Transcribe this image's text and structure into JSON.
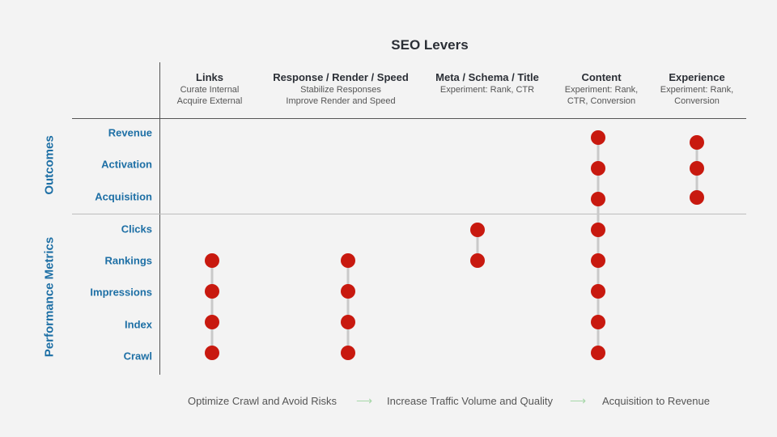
{
  "title": "SEO Levers",
  "columns": [
    {
      "heading": "Links",
      "sub1": "Curate Internal",
      "sub2": "Acquire External"
    },
    {
      "heading": "Response / Render / Speed",
      "sub1": "Stabilize Responses",
      "sub2": "Improve Render and Speed"
    },
    {
      "heading": "Meta / Schema / Title",
      "sub1": "Experiment: Rank, CTR",
      "sub2": ""
    },
    {
      "heading": "Content",
      "sub1": "Experiment: Rank,",
      "sub2": "CTR, Conversion"
    },
    {
      "heading": "Experience",
      "sub1": "Experiment: Rank,",
      "sub2": "Conversion"
    }
  ],
  "groups": {
    "outcomes": "Outcomes",
    "performance": "Performance Metrics"
  },
  "rows": [
    "Revenue",
    "Activation",
    "Acquisition",
    "Clicks",
    "Rankings",
    "Impressions",
    "Index",
    "Crawl"
  ],
  "matrix": [
    {
      "column": "Links",
      "rows": [
        "Rankings",
        "Impressions",
        "Index",
        "Crawl"
      ]
    },
    {
      "column": "Response / Render / Speed",
      "rows": [
        "Rankings",
        "Impressions",
        "Index",
        "Crawl"
      ]
    },
    {
      "column": "Meta / Schema / Title",
      "rows": [
        "Clicks",
        "Rankings"
      ]
    },
    {
      "column": "Content",
      "rows": [
        "Revenue",
        "Activation",
        "Acquisition",
        "Clicks",
        "Rankings",
        "Impressions",
        "Index",
        "Crawl"
      ]
    },
    {
      "column": "Experience",
      "rows": [
        "Revenue",
        "Activation",
        "Acquisition"
      ]
    }
  ],
  "colors": {
    "dot": "#c8190f",
    "connector": "#c9c9c9",
    "label": "#1d6fa5",
    "arrow": "#a6d7a8"
  },
  "footer": {
    "stage1": "Optimize Crawl and Avoid Risks",
    "stage2": "Increase Traffic Volume and Quality",
    "stage3": "Acquisition to Revenue"
  }
}
